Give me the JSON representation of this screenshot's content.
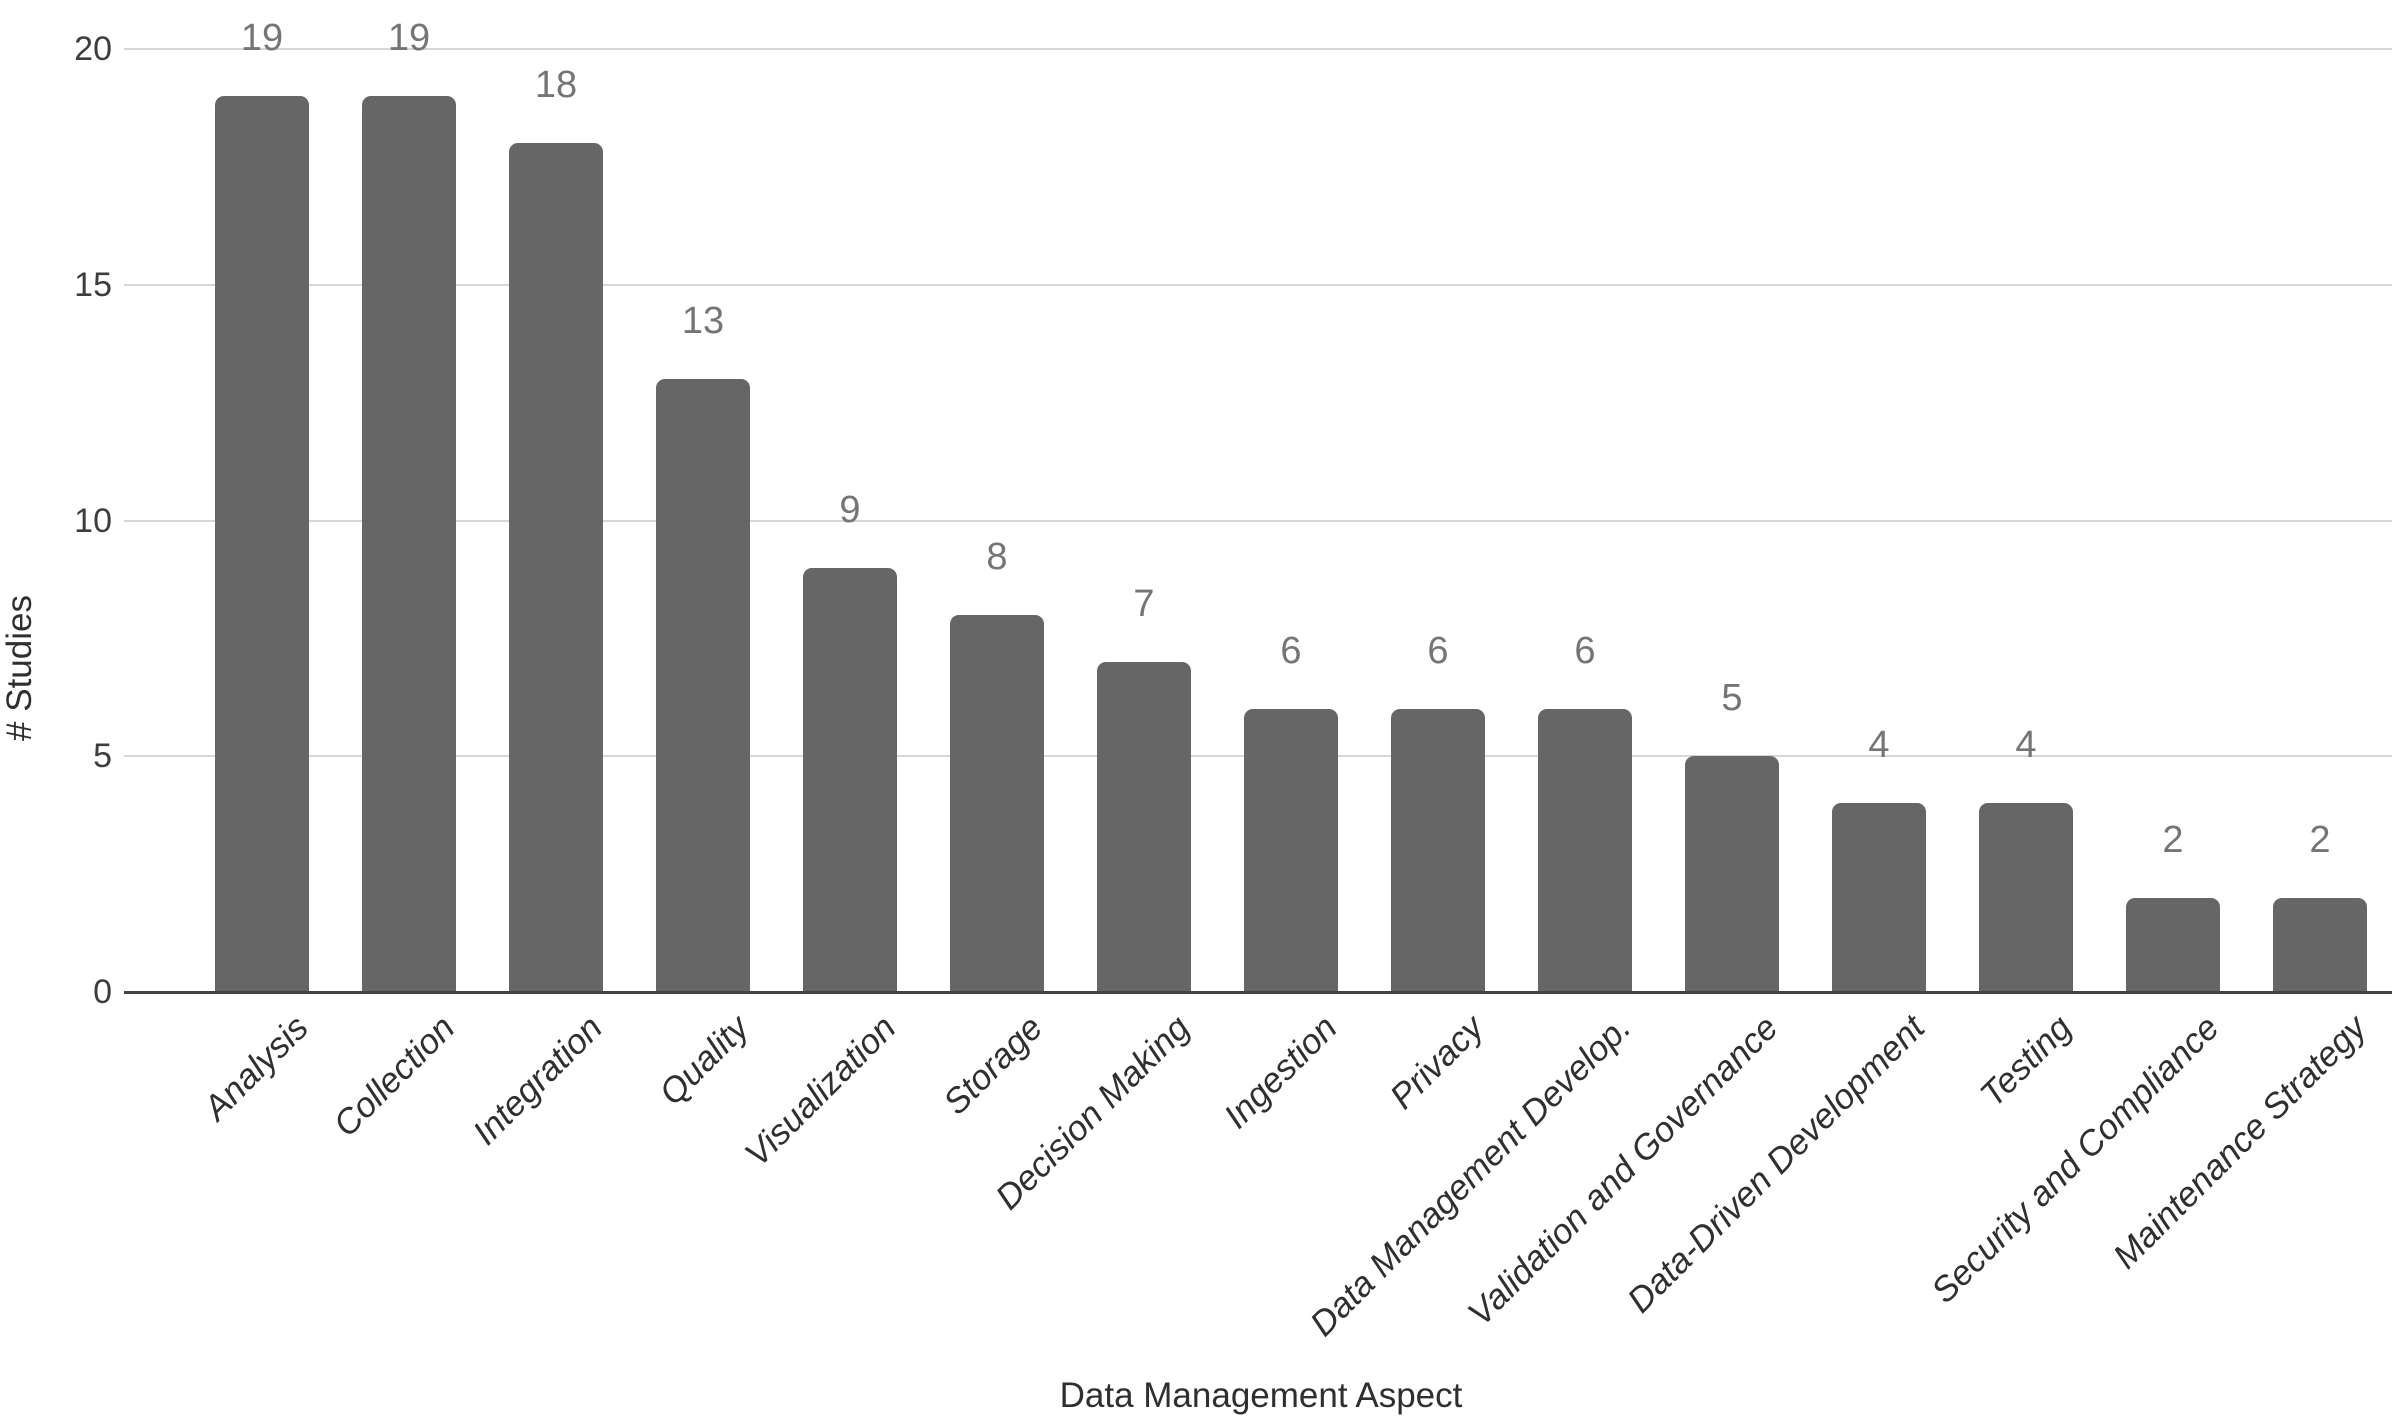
{
  "chart_data": {
    "type": "bar",
    "title": "",
    "xlabel": "Data Management Aspect",
    "ylabel": "# Studies",
    "categories": [
      "Analysis",
      "Collection",
      "Integration",
      "Quality",
      "Visualization",
      "Storage",
      "Decision Making",
      "Ingestion",
      "Privacy",
      "Data Management Develop.",
      "Validation and Governance",
      "Data-Driven Development",
      "Testing",
      "Security and Compliance",
      "Maintenance Strategy"
    ],
    "values": [
      19,
      19,
      18,
      13,
      9,
      8,
      7,
      6,
      6,
      6,
      5,
      4,
      4,
      2,
      2
    ],
    "yticks": [
      0,
      5,
      10,
      15,
      20
    ],
    "ylim": [
      0,
      20
    ],
    "grid": true,
    "legend_position": "none",
    "value_labels_shown": true,
    "colors": {
      "bar": "#666666",
      "value_label": "#757575",
      "tick_label": "#3d3d3d",
      "category_label": "#2f2f2f",
      "gridline": "#d6d6d6",
      "baseline": "#424242",
      "axis_title": "#2f2f2f",
      "background": "#ffffff"
    }
  }
}
